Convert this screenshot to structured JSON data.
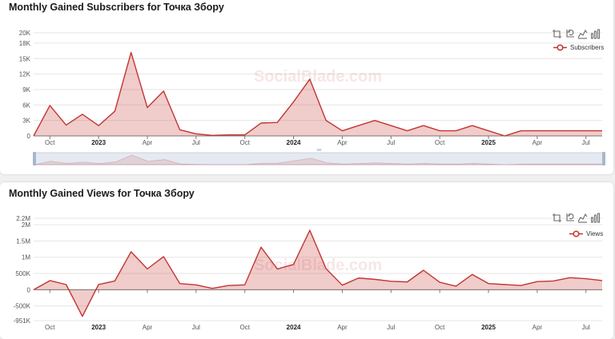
{
  "subscribers_panel": {
    "title": "Monthly Gained Subscribers for Точка Збору",
    "legend": "Subscribers",
    "watermark": "SocialBlade.com"
  },
  "views_panel": {
    "title": "Monthly Gained Views for Точка Збору",
    "legend": "Views",
    "watermark": "SocialBlade.com"
  },
  "toolbar_icons": [
    "zoom-icon",
    "zoom-reset-icon",
    "line-chart-icon",
    "bar-chart-icon"
  ],
  "colors": {
    "series": "#c23531",
    "fill": "rgba(194,53,49,0.25)",
    "grid": "#e6e6e6",
    "watermark": "rgba(194,53,49,0.12)"
  },
  "chart_data": [
    {
      "type": "area",
      "title": "Monthly Gained Subscribers for Точка Збору",
      "x": [
        "2022-09",
        "2022-10",
        "2022-11",
        "2022-12",
        "2023-01",
        "2023-02",
        "2023-03",
        "2023-04",
        "2023-05",
        "2023-06",
        "2023-07",
        "2023-08",
        "2023-09",
        "2023-10",
        "2023-11",
        "2023-12",
        "2024-01",
        "2024-02",
        "2024-03",
        "2024-04",
        "2024-05",
        "2024-06",
        "2024-07",
        "2024-08",
        "2024-09",
        "2024-10",
        "2024-11",
        "2024-12",
        "2025-01",
        "2025-02",
        "2025-03",
        "2025-04",
        "2025-05",
        "2025-06",
        "2025-07",
        "2025-08"
      ],
      "x_tick_labels": [
        {
          "x": "2022-10",
          "label": "Oct",
          "bold": false
        },
        {
          "x": "2023-01",
          "label": "2023",
          "bold": true
        },
        {
          "x": "2023-04",
          "label": "Apr",
          "bold": false
        },
        {
          "x": "2023-07",
          "label": "Jul",
          "bold": false
        },
        {
          "x": "2023-10",
          "label": "Oct",
          "bold": false
        },
        {
          "x": "2024-01",
          "label": "2024",
          "bold": true
        },
        {
          "x": "2024-04",
          "label": "Apr",
          "bold": false
        },
        {
          "x": "2024-07",
          "label": "Jul",
          "bold": false
        },
        {
          "x": "2024-10",
          "label": "Oct",
          "bold": false
        },
        {
          "x": "2025-01",
          "label": "2025",
          "bold": true
        },
        {
          "x": "2025-04",
          "label": "Apr",
          "bold": false
        },
        {
          "x": "2025-07",
          "label": "Jul",
          "bold": false
        }
      ],
      "series": [
        {
          "name": "Subscribers",
          "values": [
            0,
            5900,
            2100,
            4200,
            2000,
            4800,
            16200,
            5500,
            8700,
            1200,
            400,
            100,
            200,
            200,
            2500,
            2600,
            6600,
            11000,
            3000,
            1000,
            2000,
            3000,
            2000,
            1000,
            2000,
            1000,
            1000,
            2000,
            1000,
            0,
            1000,
            1000,
            1000,
            1000,
            1000,
            1000
          ]
        }
      ],
      "yticks": [
        0,
        3000,
        6000,
        9000,
        12000,
        15000,
        18000,
        20000
      ],
      "ytick_labels": [
        "0",
        "3K",
        "6K",
        "9K",
        "12K",
        "15K",
        "18K",
        "20K"
      ],
      "ylim": [
        0,
        20000
      ],
      "grid": true,
      "legend_position": "top-right",
      "has_zoom_slider": true
    },
    {
      "type": "area",
      "title": "Monthly Gained Views for Точка Збору",
      "x": [
        "2022-09",
        "2022-10",
        "2022-11",
        "2022-12",
        "2023-01",
        "2023-02",
        "2023-03",
        "2023-04",
        "2023-05",
        "2023-06",
        "2023-07",
        "2023-08",
        "2023-09",
        "2023-10",
        "2023-11",
        "2023-12",
        "2024-01",
        "2024-02",
        "2024-03",
        "2024-04",
        "2024-05",
        "2024-06",
        "2024-07",
        "2024-08",
        "2024-09",
        "2024-10",
        "2024-11",
        "2024-12",
        "2025-01",
        "2025-02",
        "2025-03",
        "2025-04",
        "2025-05",
        "2025-06",
        "2025-07",
        "2025-08"
      ],
      "x_tick_labels": [
        {
          "x": "2022-10",
          "label": "Oct",
          "bold": false
        },
        {
          "x": "2023-01",
          "label": "2023",
          "bold": true
        },
        {
          "x": "2023-04",
          "label": "Apr",
          "bold": false
        },
        {
          "x": "2023-07",
          "label": "Jul",
          "bold": false
        },
        {
          "x": "2023-10",
          "label": "Oct",
          "bold": false
        },
        {
          "x": "2024-01",
          "label": "2024",
          "bold": true
        },
        {
          "x": "2024-04",
          "label": "Apr",
          "bold": false
        },
        {
          "x": "2024-07",
          "label": "Jul",
          "bold": false
        },
        {
          "x": "2024-10",
          "label": "Oct",
          "bold": false
        },
        {
          "x": "2025-01",
          "label": "2025",
          "bold": true
        },
        {
          "x": "2025-04",
          "label": "Apr",
          "bold": false
        },
        {
          "x": "2025-07",
          "label": "Jul",
          "bold": false
        }
      ],
      "series": [
        {
          "name": "Views",
          "values": [
            0,
            280000,
            160000,
            -820000,
            160000,
            270000,
            1170000,
            640000,
            1020000,
            190000,
            150000,
            40000,
            130000,
            150000,
            1310000,
            640000,
            780000,
            1830000,
            650000,
            140000,
            360000,
            320000,
            260000,
            240000,
            600000,
            230000,
            110000,
            470000,
            190000,
            160000,
            130000,
            250000,
            270000,
            370000,
            340000,
            280000
          ]
        }
      ],
      "yticks": [
        -951000,
        -500000,
        0,
        500000,
        1000000,
        1500000,
        2000000,
        2200000
      ],
      "ytick_labels": [
        "-951K",
        "-500K",
        "0",
        "500K",
        "1M",
        "1.5M",
        "2M",
        "2.2M"
      ],
      "ylim": [
        -951000,
        2200000
      ],
      "grid": true,
      "legend_position": "top-right",
      "has_zoom_slider": false
    }
  ]
}
